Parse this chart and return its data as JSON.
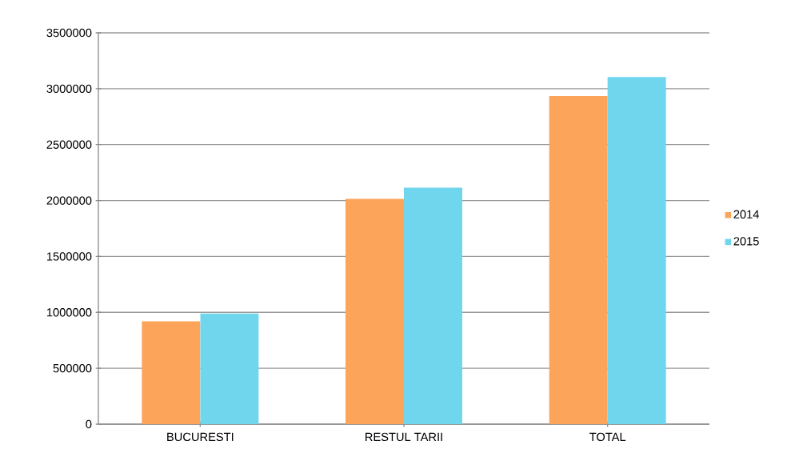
{
  "chart_data": {
    "type": "bar",
    "categories": [
      "BUCURESTI",
      "RESTUL TARII",
      "TOTAL"
    ],
    "series": [
      {
        "name": "2014",
        "color": "#fca55a",
        "values": [
          920000,
          2015000,
          2935000
        ]
      },
      {
        "name": "2015",
        "color": "#6fd6ee",
        "values": [
          990000,
          2115000,
          3105000
        ]
      }
    ],
    "ylim": [
      0,
      3500000
    ],
    "yticks": [
      0,
      500000,
      1000000,
      1500000,
      2000000,
      2500000,
      3000000,
      3500000
    ],
    "grid": "y",
    "legend": "right"
  }
}
